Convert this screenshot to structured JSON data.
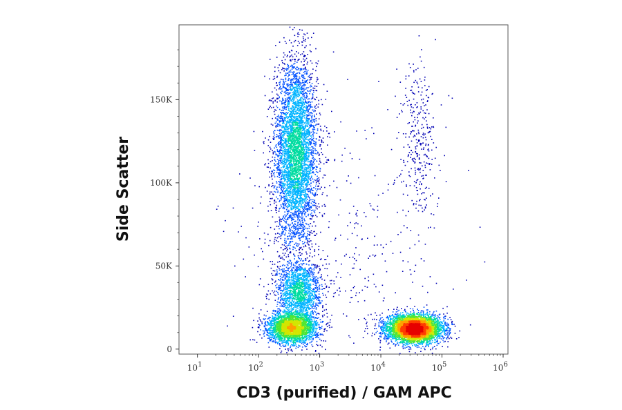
{
  "chart_data": {
    "type": "scatter",
    "style": "density",
    "title": "",
    "xlabel": "CD3 (purified) / GAM APC",
    "ylabel": "Side Scatter",
    "x_scale": "log",
    "xlim": [
      5,
      1200000
    ],
    "ylim": [
      -3000,
      195000
    ],
    "grid": false,
    "x_ticks": [
      {
        "value": 10,
        "base": "10",
        "exp": "1"
      },
      {
        "value": 100,
        "base": "10",
        "exp": "2"
      },
      {
        "value": 1000,
        "base": "10",
        "exp": "3"
      },
      {
        "value": 10000,
        "base": "10",
        "exp": "4"
      },
      {
        "value": 100000,
        "base": "10",
        "exp": "5"
      },
      {
        "value": 1000000,
        "base": "10",
        "exp": "6"
      }
    ],
    "y_ticks": [
      {
        "value": 0,
        "label": "0"
      },
      {
        "value": 50000,
        "label": "50K"
      },
      {
        "value": 100000,
        "label": "100K"
      },
      {
        "value": 150000,
        "label": "150K"
      }
    ],
    "populations": [
      {
        "name_hint": "cd3-negative-granulocytes",
        "x_center": 400,
        "y_center": 118000,
        "x_spread_log10": 0.17,
        "y_spread": 28000,
        "count": 4800
      },
      {
        "name_hint": "cd3-negative-monocytes",
        "x_center": 450,
        "y_center": 35000,
        "x_spread_log10": 0.18,
        "y_spread": 9000,
        "count": 1600
      },
      {
        "name_hint": "cd3-negative-lymphocytes",
        "x_center": 350,
        "y_center": 13000,
        "x_spread_log10": 0.2,
        "y_spread": 4500,
        "count": 2800
      },
      {
        "name_hint": "cd3-positive-lymphocytes",
        "x_center": 35000,
        "y_center": 12500,
        "x_spread_log10": 0.22,
        "y_spread": 4000,
        "count": 5200
      },
      {
        "name_hint": "cd3-positive-scatter-high",
        "x_center": 40000,
        "y_center": 125000,
        "x_spread_log10": 0.15,
        "y_spread": 25000,
        "count": 320
      },
      {
        "name_hint": "background",
        "x_center": 2000,
        "y_center": 60000,
        "x_spread_log10": 0.9,
        "y_spread": 45000,
        "count": 450
      }
    ],
    "density_colors": [
      "#0000b4",
      "#0050ff",
      "#00b4ff",
      "#00dca0",
      "#50e632",
      "#d2e600",
      "#ffa000",
      "#ff3c00",
      "#e60000"
    ]
  }
}
